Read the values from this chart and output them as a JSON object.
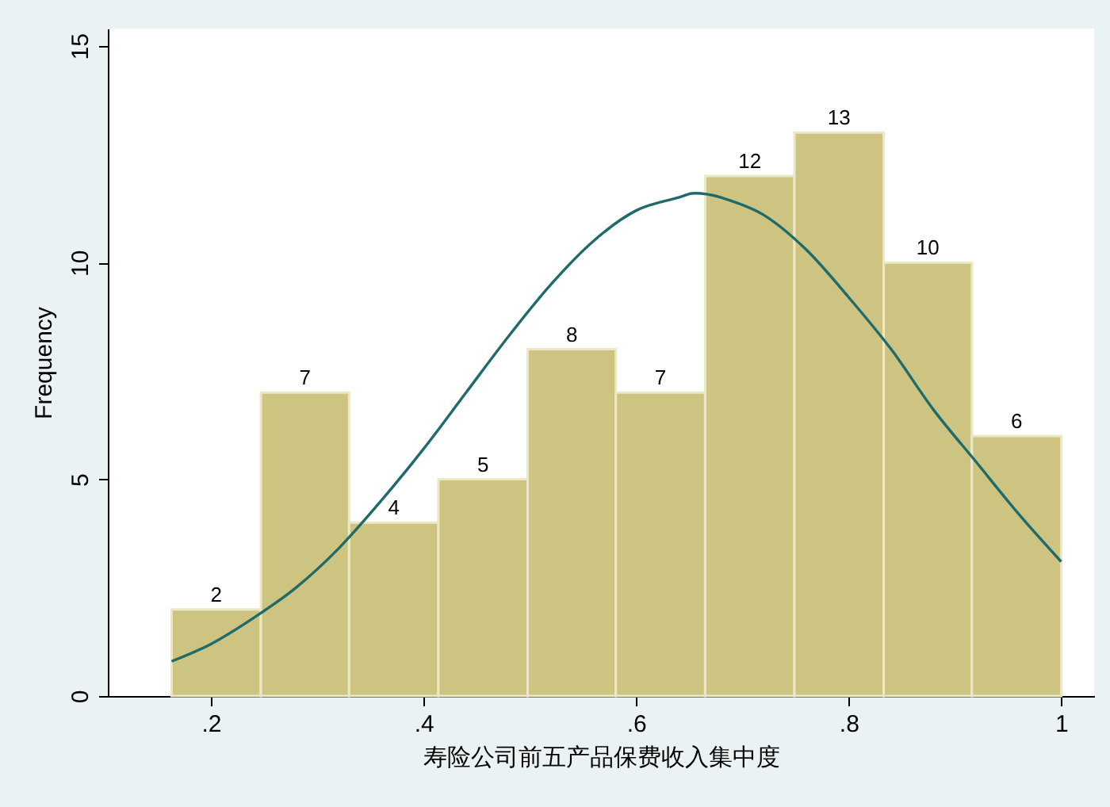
{
  "chart_data": {
    "type": "histogram",
    "xlabel": "寿险公司前五产品保费收入集中度",
    "ylabel": "Frequency",
    "bins": [
      0.163,
      0.247,
      0.33,
      0.414,
      0.498,
      0.581,
      0.665,
      0.749,
      0.833,
      0.916,
      1.0
    ],
    "xlim": [
      0.103,
      1.031
    ],
    "ylim": [
      0,
      15.4
    ],
    "xticks": [
      {
        "value": 0.2,
        "label": ".2"
      },
      {
        "value": 0.4,
        "label": ".4"
      },
      {
        "value": 0.6,
        "label": ".6"
      },
      {
        "value": 0.8,
        "label": ".8"
      },
      1
    ],
    "yticks": [
      0,
      5,
      10,
      15
    ],
    "grid": false,
    "series": [
      {
        "color": "#cdc481",
        "values": [
          2,
          7,
          4,
          5,
          8,
          7,
          12,
          13,
          10,
          6
        ],
        "value_labels": [
          "2",
          "7",
          "4",
          "5",
          "8",
          "7",
          "12",
          "13",
          "10",
          "6"
        ]
      },
      {
        "type": "line",
        "color": "#1f6b6b",
        "x": [
          0.163,
          0.2,
          0.24,
          0.28,
          0.32,
          0.36,
          0.4,
          0.44,
          0.48,
          0.52,
          0.56,
          0.6,
          0.64,
          0.655,
          0.68,
          0.72,
          0.76,
          0.8,
          0.84,
          0.88,
          0.92,
          0.96,
          1.0
        ],
        "values": [
          0.8,
          1.2,
          1.8,
          2.5,
          3.4,
          4.5,
          5.7,
          7.0,
          8.3,
          9.5,
          10.5,
          11.2,
          11.5,
          11.6,
          11.5,
          11.1,
          10.3,
          9.2,
          8.0,
          6.6,
          5.4,
          4.2,
          3.1
        ]
      }
    ]
  }
}
